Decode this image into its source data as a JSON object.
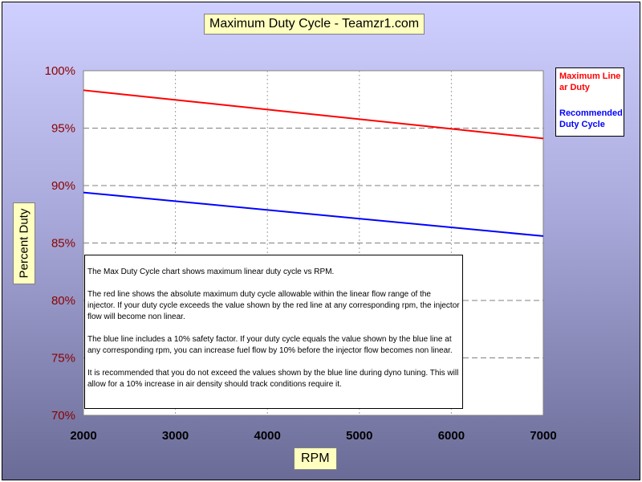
{
  "chart_data": {
    "type": "line",
    "title": "Maximum Duty Cycle - Teamzr1.com",
    "xlabel": "RPM",
    "ylabel": "Percent Duty",
    "x": [
      2000,
      7000
    ],
    "xlim": [
      2000,
      7000
    ],
    "xticks": [
      "2000",
      "3000",
      "4000",
      "5000",
      "6000",
      "7000"
    ],
    "ylim": [
      70,
      100
    ],
    "yticks": [
      "70%",
      "75%",
      "80%",
      "85%",
      "90%",
      "95%",
      "100%"
    ],
    "grid": true,
    "legend_position": "right",
    "series": [
      {
        "name": "Maximum Linear Duty",
        "color": "#ff0000",
        "values": [
          98.3,
          94.1
        ]
      },
      {
        "name": "Recommended Duty Cycle",
        "color": "#0000ff",
        "values": [
          89.4,
          85.6
        ]
      }
    ]
  },
  "legend": {
    "entries": [
      "Maximum Linear Duty",
      "Recommended Duty Cycle"
    ]
  },
  "note": {
    "paragraphs": [
      "The Max Duty Cycle chart shows maximum linear duty cycle vs RPM.",
      "The red line shows the absolute maximum duty cycle allowable within the linear flow range of the injector.  If your duty cycle exceeds the value shown by the red line at any corresponding rpm, the injector flow will become non linear.",
      "The blue line includes a 10% safety factor.  If your duty cycle equals the value shown by the blue line at any corresponding rpm, you can increase fuel flow by 10% before the injector flow becomes non linear.",
      "It is recommended that you do not exceed the values shown by the blue line during dyno tuning.  This will allow for a 10% increase in air density should track conditions require it."
    ]
  }
}
